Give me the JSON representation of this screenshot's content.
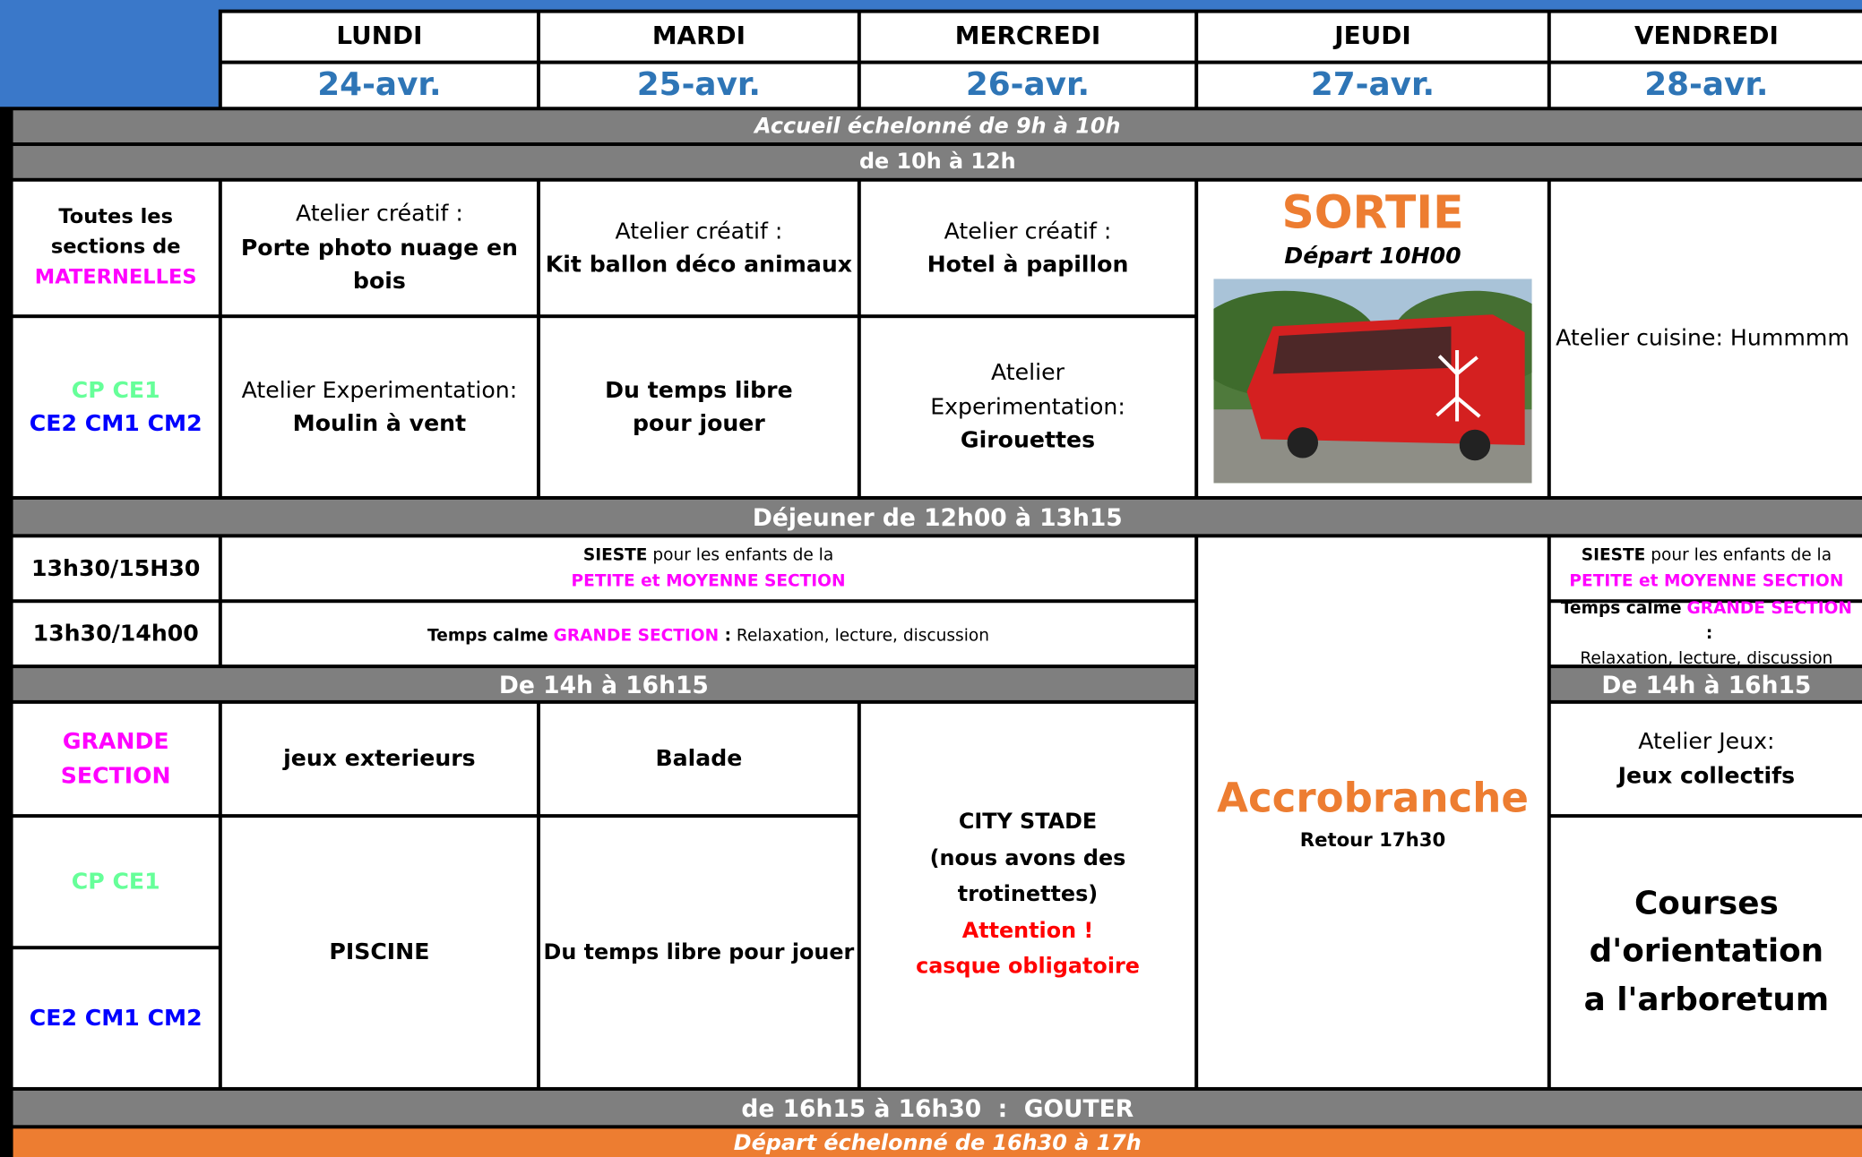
{
  "days": [
    {
      "name": "LUNDI",
      "date": "24-avr."
    },
    {
      "name": "MARDI",
      "date": "25-avr."
    },
    {
      "name": "MERCREDI",
      "date": "26-avr."
    },
    {
      "name": "JEUDI",
      "date": "27-avr."
    },
    {
      "name": "VENDREDI",
      "date": "28-avr."
    }
  ],
  "bands": {
    "arrival": "Accueil échelonné de 9h à 10h",
    "morning": "de 10h  à 12h",
    "lunch": "Déjeuner de 12h00 à 13h15",
    "afternoon": "De 14h à 16h15",
    "afternoon_friday": "De 14h à 16h15",
    "snack": "de 16h15 à 16h30  :  GOUTER",
    "departure": "Départ échelonné de 16h30 à 17h"
  },
  "morning": {
    "group_kindergarten": {
      "prefix": "Toutes les sections de",
      "name": "MATERNELLES"
    },
    "group_primary": {
      "first": "CP CE1",
      "second": "CE2 CM1 CM2"
    },
    "monday_kindergarten": {
      "label": "Atelier créatif :",
      "activity": "Porte photo nuage en bois"
    },
    "tuesday_kindergarten": {
      "label": "Atelier créatif :",
      "activity": "Kit ballon déco animaux"
    },
    "wednesday_kindergarten": {
      "label": "Atelier créatif :",
      "activity": "Hotel à papillon"
    },
    "thursday": {
      "title": "SORTIE",
      "subtitle": "Départ 10H00"
    },
    "friday": "Atelier cuisine: Hummmm",
    "monday_primary": {
      "label": "Atelier Experimentation:",
      "activity": "Moulin à vent"
    },
    "tuesday_primary": "Du temps libre pour jouer",
    "wednesday_primary": {
      "label": "Atelier Experimentation:",
      "activity": "Girouettes"
    }
  },
  "early_afternoon": {
    "nap_time": "13h30/15H30",
    "quiet_time": "13h30/14h00",
    "nap": {
      "bold": "SIESTE",
      "text": " pour les enfants de la",
      "highlight": "PETITE et MOYENNE SECTION"
    },
    "quiet": {
      "bold": "Temps calme",
      "highlight": "GRANDE SECTION",
      "colon": " :",
      "text": " Relaxation, lecture, discussion"
    },
    "nap_friday": {
      "bold": "SIESTE",
      "text": " pour les enfants de la",
      "highlight": "PETITE et MOYENNE SECTION"
    },
    "quiet_friday": {
      "bold": "Temps calme",
      "highlight": "GRANDE SECTION",
      "colon": " :",
      "text": "Relaxation, lecture, discussion"
    }
  },
  "afternoon": {
    "group_gs": "GRANDE SECTION",
    "group_cp": "CP CE1",
    "group_ce2": "CE2 CM1 CM2",
    "monday_gs": "jeux exterieurs",
    "tuesday_gs": "Balade",
    "monday_primary": "PISCINE",
    "tuesday_primary": "Du temps libre pour jouer",
    "wednesday": {
      "title": "CITY STADE",
      "note": "(nous avons des trotinettes)",
      "warning": "Attention !",
      "rule": "casque obligatoire"
    },
    "thursday": {
      "title": "Accrobranche",
      "note": "Retour 17h30"
    },
    "friday_gs": {
      "label": "Atelier Jeux:",
      "activity": "Jeux collectifs"
    },
    "friday_primary": "Courses d'orientation  a l'arboretum"
  }
}
